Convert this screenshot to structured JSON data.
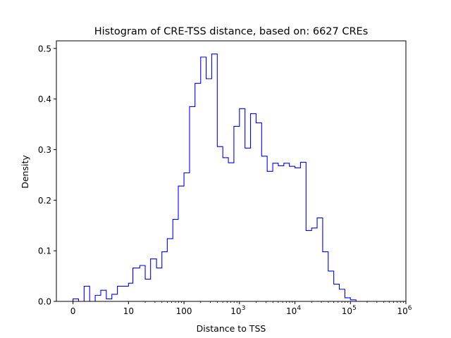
{
  "chart_data": {
    "type": "histogram",
    "title": "Histogram of CRE-TSS distance, based on: 6627 CREs",
    "xlabel": "Distance to TSS",
    "ylabel": "Density",
    "x_scale": "symlog",
    "xlim": [
      -3,
      1000000
    ],
    "ylim": [
      0,
      0.515
    ],
    "x_ticks": [
      {
        "value": 0,
        "label": "0"
      },
      {
        "value": 10,
        "label": "10"
      },
      {
        "value": 100,
        "label": "100"
      },
      {
        "value": 1000,
        "label": "10",
        "exp": "3"
      },
      {
        "value": 10000,
        "label": "10",
        "exp": "4"
      },
      {
        "value": 100000,
        "label": "10",
        "exp": "5"
      },
      {
        "value": 1000000,
        "label": "10",
        "exp": "6"
      }
    ],
    "y_ticks": [
      {
        "value": 0.0,
        "label": "0.0"
      },
      {
        "value": 0.1,
        "label": "0.1"
      },
      {
        "value": 0.2,
        "label": "0.2"
      },
      {
        "value": 0.3,
        "label": "0.3"
      },
      {
        "value": 0.4,
        "label": "0.4"
      },
      {
        "value": 0.5,
        "label": "0.5"
      }
    ],
    "series": [
      {
        "style": "step",
        "color": "#0000ff",
        "bin_edges": [
          0,
          1,
          2,
          3,
          4,
          5,
          6,
          7,
          8,
          10,
          12,
          16,
          20,
          25,
          32,
          40,
          50,
          63,
          79,
          100,
          126,
          158,
          200,
          251,
          316,
          398,
          501,
          631,
          794,
          1000,
          1259,
          1585,
          1995,
          2512,
          3162,
          3981,
          5012,
          6310,
          7943,
          10000,
          12589,
          15849,
          19953,
          25119,
          31623,
          39811,
          50119,
          63096,
          79433,
          100000,
          125893,
          158489,
          199526,
          251189,
          316228,
          398107
        ],
        "density": [
          0.005,
          0.0,
          0.03,
          0.0,
          0.012,
          0.022,
          0.005,
          0.014,
          0.03,
          0.036,
          0.066,
          0.071,
          0.044,
          0.084,
          0.066,
          0.098,
          0.124,
          0.162,
          0.228,
          0.254,
          0.385,
          0.431,
          0.483,
          0.44,
          0.489,
          0.306,
          0.284,
          0.274,
          0.346,
          0.381,
          0.303,
          0.371,
          0.353,
          0.287,
          0.257,
          0.273,
          0.268,
          0.273,
          0.267,
          0.264,
          0.275,
          0.14,
          0.145,
          0.165,
          0.098,
          0.06,
          0.034,
          0.024,
          0.007,
          0.003,
          0.0,
          0.0,
          0.0,
          0.0,
          0.0
        ]
      }
    ],
    "grid": false,
    "legend": "none"
  }
}
